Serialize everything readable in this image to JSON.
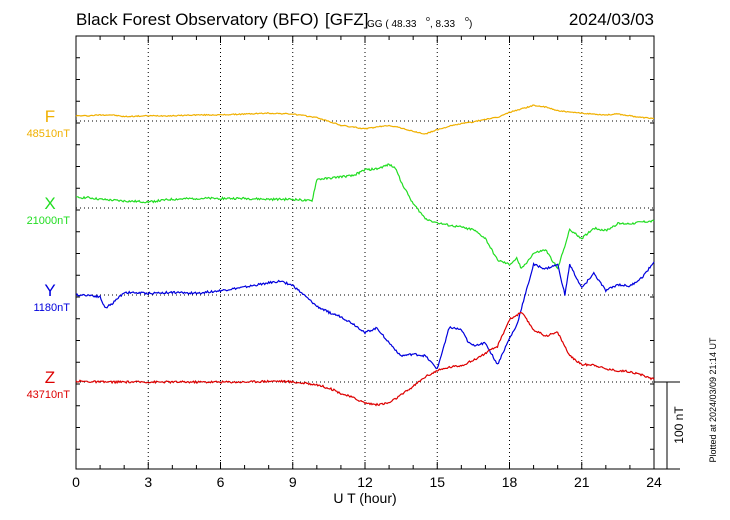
{
  "header": {
    "title": "Black Forest Observatory (BFO)",
    "gfz": "[GFZ]",
    "coords_prefix": "GG ( 48.33",
    "coords_suffix": ",   8.33",
    "coords_end": ")",
    "date": "2024/03/03"
  },
  "footer": {
    "plotted": "Plotted at 2024/03/09 21:14 UT"
  },
  "chart_data": {
    "type": "line",
    "xlabel": "U T (hour)",
    "xlim": [
      0,
      24
    ],
    "xticks": [
      0,
      3,
      6,
      9,
      12,
      15,
      18,
      21,
      24
    ],
    "scale_label": "100 nT",
    "scale_nT": 100,
    "grid": true,
    "series": [
      {
        "name": "F",
        "baseline_label": "48510nT",
        "color": "#f0b000",
        "x": [
          0,
          0.5,
          1,
          1.5,
          2,
          3,
          4,
          5,
          6,
          7,
          8,
          9,
          10,
          11,
          12,
          12.5,
          13,
          13.5,
          14,
          14.5,
          15,
          15.5,
          16,
          16.5,
          17,
          17.5,
          18,
          18.5,
          19,
          19.5,
          20,
          20.5,
          21,
          21.5,
          22,
          22.5,
          23,
          23.5,
          24
        ],
        "y": [
          6,
          6,
          7,
          7,
          5,
          6,
          6,
          7,
          7,
          8,
          9,
          8,
          4,
          -5,
          -9,
          -7,
          -5,
          -8,
          -12,
          -15,
          -10,
          -6,
          -3,
          -1,
          2,
          4,
          10,
          14,
          18,
          16,
          12,
          10,
          9,
          8,
          7,
          8,
          6,
          4,
          3
        ]
      },
      {
        "name": "X",
        "baseline_label": "21000nT",
        "color": "#22dd22",
        "x": [
          0,
          0.5,
          1,
          1.5,
          2,
          3,
          4,
          5,
          6,
          7,
          8,
          9,
          9.8,
          10,
          10.5,
          11,
          11.5,
          12,
          12.5,
          13,
          13.3,
          13.5,
          14,
          14.5,
          15,
          15.5,
          16,
          16.5,
          17,
          17.5,
          18,
          18.3,
          18.5,
          19,
          19.5,
          20,
          20.5,
          21,
          21.5,
          22,
          22.5,
          23,
          23.5,
          24
        ],
        "y": [
          12,
          12,
          10,
          9,
          8,
          7,
          10,
          11,
          11,
          11,
          10,
          10,
          8,
          33,
          34,
          36,
          37,
          44,
          45,
          50,
          45,
          30,
          5,
          -12,
          -17,
          -20,
          -22,
          -25,
          -35,
          -60,
          -65,
          -58,
          -70,
          -52,
          -48,
          -70,
          -25,
          -35,
          -23,
          -26,
          -18,
          -18,
          -16,
          -15
        ]
      },
      {
        "name": "Y",
        "baseline_label": "1180nT",
        "color": "#0000dd",
        "x": [
          0,
          0.5,
          1,
          1.2,
          1.5,
          2,
          3,
          4,
          5,
          6,
          7,
          8,
          8.5,
          9,
          10,
          10.5,
          11,
          11.5,
          12,
          12.5,
          13,
          13.5,
          14,
          14.5,
          15,
          15.5,
          16,
          16.3,
          16.5,
          17,
          17.5,
          18,
          18.3,
          18.5,
          19,
          19.5,
          20,
          20.3,
          20.5,
          21,
          21.5,
          22,
          22.5,
          23,
          23.5,
          24
        ],
        "y": [
          0,
          0,
          -2,
          -15,
          -10,
          3,
          2,
          3,
          2,
          5,
          9,
          14,
          16,
          11,
          -13,
          -20,
          -25,
          -33,
          -43,
          -38,
          -55,
          -70,
          -68,
          -70,
          -85,
          -37,
          -40,
          -55,
          -58,
          -55,
          -80,
          -50,
          -35,
          -15,
          35,
          30,
          35,
          0,
          35,
          8,
          25,
          5,
          12,
          10,
          20,
          38
        ]
      },
      {
        "name": "Z",
        "baseline_label": "43710nT",
        "color": "#dd0000",
        "x": [
          0,
          1,
          2,
          3,
          4,
          5,
          6,
          7,
          8,
          8.5,
          9,
          10,
          10.5,
          11,
          11.5,
          12,
          12.5,
          13,
          13.5,
          14,
          14.5,
          15,
          15.5,
          16,
          16.5,
          17,
          17.5,
          18,
          18.5,
          19,
          19.5,
          20,
          20.5,
          21,
          21.5,
          22,
          22.5,
          23,
          23.5,
          24
        ],
        "y": [
          1,
          0,
          0,
          0,
          0,
          0,
          0,
          0,
          1,
          1,
          0,
          -3,
          -7,
          -13,
          -18,
          -24,
          -26,
          -24,
          -15,
          -5,
          6,
          13,
          17,
          19,
          25,
          33,
          41,
          72,
          80,
          60,
          53,
          57,
          30,
          20,
          20,
          15,
          13,
          12,
          8,
          3
        ]
      }
    ]
  }
}
